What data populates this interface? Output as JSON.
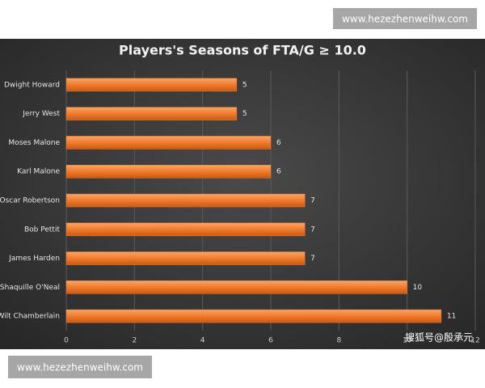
{
  "watermarks": [
    "www.hezezhenweihw.com",
    "www.hezezhenweihw.com",
    "搜狐号@殷承元"
  ],
  "chart_data": {
    "type": "bar",
    "orientation": "horizontal",
    "title": "Players's Seasons of FTA/G ≥ 10.0",
    "categories": [
      "Dwight Howard",
      "Jerry West",
      "Moses Malone",
      "Karl Malone",
      "Oscar Robertson",
      "Bob Pettit",
      "James Harden",
      "Shaquille O'Neal",
      "Wilt Chamberlain"
    ],
    "values": [
      5,
      5,
      6,
      6,
      7,
      7,
      7,
      10,
      11
    ],
    "color": "#f07b2c",
    "xlim": [
      0,
      12
    ],
    "xticks": [
      0,
      2,
      4,
      6,
      8,
      10,
      12
    ],
    "grid": true
  }
}
